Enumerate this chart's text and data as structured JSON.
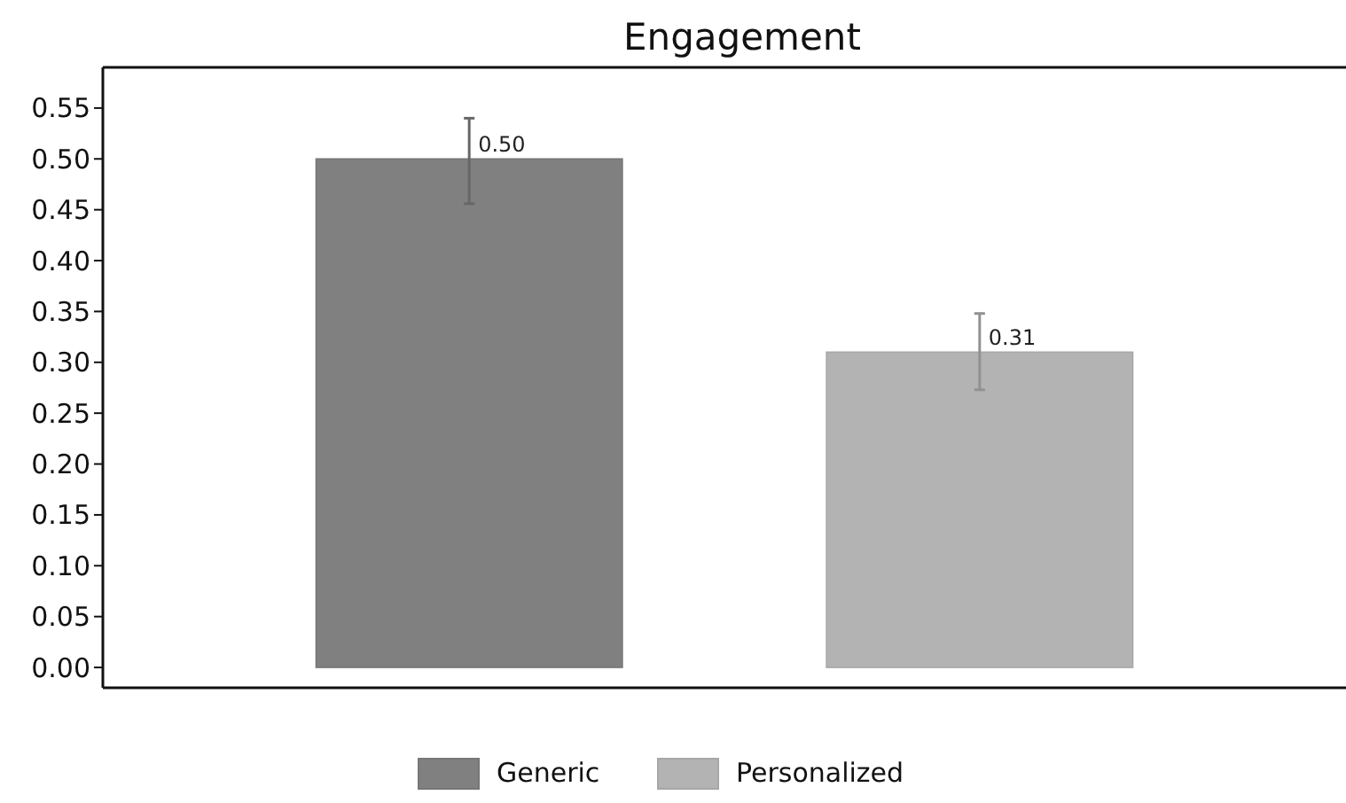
{
  "chart_data": {
    "type": "bar",
    "title": "Engagement",
    "categories": [
      null
    ],
    "series": [
      {
        "name": "Generic",
        "color": "#808080",
        "values": [
          0.5
        ],
        "value_labels": [
          "0.50"
        ],
        "errors": [
          [
            0.456,
            0.54
          ]
        ]
      },
      {
        "name": "Personalized",
        "color": "#b3b3b3",
        "values": [
          0.31
        ],
        "value_labels": [
          "0.31"
        ],
        "errors": [
          [
            0.273,
            0.348
          ]
        ]
      }
    ],
    "ylim": [
      -0.02,
      0.59
    ],
    "yticks": [
      {
        "value": 0,
        "label": "0.00"
      },
      {
        "value": 0.05,
        "label": "0.05"
      },
      {
        "value": 0.1,
        "label": "0.10"
      },
      {
        "value": 0.15,
        "label": "0.15"
      },
      {
        "value": 0.2,
        "label": "0.20"
      },
      {
        "value": 0.25,
        "label": "0.25"
      },
      {
        "value": 0.3,
        "label": "0.30"
      },
      {
        "value": 0.35,
        "label": "0.35"
      },
      {
        "value": 0.4,
        "label": "0.40"
      },
      {
        "value": 0.45,
        "label": "0.45"
      },
      {
        "value": 0.5,
        "label": "0.50"
      },
      {
        "value": 0.55,
        "label": "0.55"
      }
    ],
    "legend": "bottom",
    "grid": false
  }
}
